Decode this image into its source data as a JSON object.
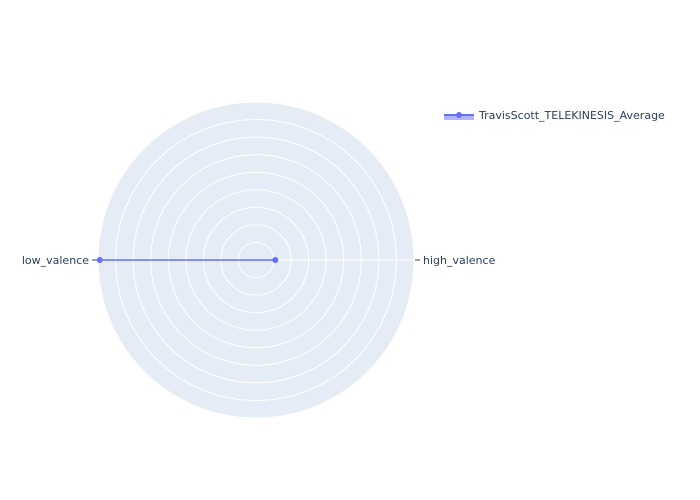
{
  "chart_data": {
    "type": "radar",
    "categories": [
      "high_valence",
      "low_valence"
    ],
    "series": [
      {
        "name": "TravisScott_TELEKINESIS_Average",
        "values": [
          0.11,
          0.89
        ],
        "color": "#636efa"
      }
    ],
    "rlim": [
      0,
      0.9
    ],
    "rtick_step": 0.1,
    "legend_position": "top-right",
    "background_color": "#e5ecf6",
    "grid_color": "#ffffff",
    "text_color": "#2a3f5f"
  }
}
